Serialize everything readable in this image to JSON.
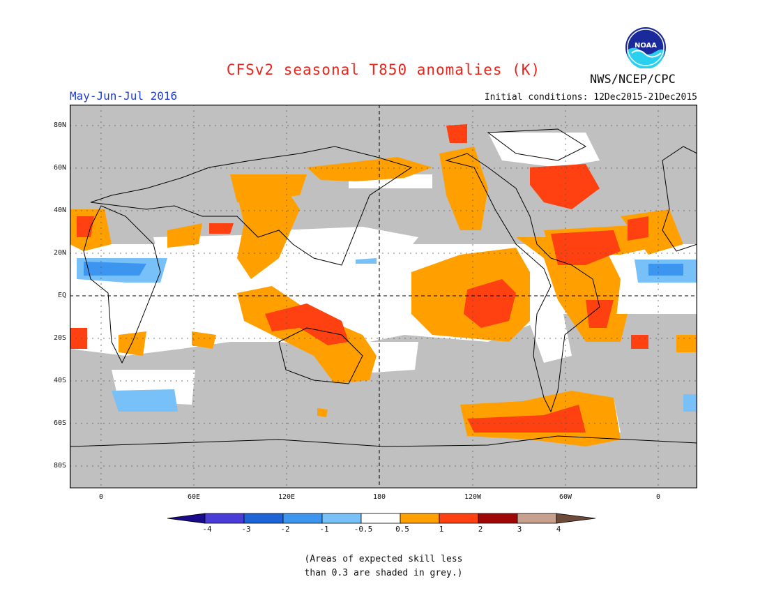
{
  "header": {
    "title": "CFSv2 seasonal T850 anomalies (K)",
    "season": "May-Jun-Jul 2016",
    "initial_conditions": "Initial conditions: 12Dec2015-21Dec2015",
    "agency": "NWS/NCEP/CPC",
    "logo_text": "NOAA",
    "logo_icon": "noaa-logo"
  },
  "axes": {
    "lat_labels": [
      "80N",
      "60N",
      "40N",
      "20N",
      "EQ",
      "20S",
      "40S",
      "60S",
      "80S"
    ],
    "lon_labels": [
      "0",
      "60E",
      "120E",
      "180",
      "120W",
      "60W",
      "0"
    ]
  },
  "colorbar": {
    "labels": [
      "-4",
      "-3",
      "-2",
      "-1",
      "-0.5",
      "0.5",
      "1",
      "2",
      "3",
      "4"
    ],
    "colors": [
      "#1a0a8c",
      "#4a3cd6",
      "#1e64d6",
      "#3c96f0",
      "#78c0f8",
      "#ffffff",
      "#ffa000",
      "#ff4010",
      "#a00808",
      "#c8a090",
      "#6e4a3a"
    ]
  },
  "map_colors": {
    "skill_grey": "#c0c0c0",
    "neutral": "#ffffff",
    "warm1": "#ffa000",
    "warm2": "#ff4010",
    "cool1": "#78c0f8",
    "cool2": "#3c96f0"
  },
  "footnote": {
    "line1": "(Areas of expected skill less",
    "line2": "than 0.3 are shaded in grey.)"
  }
}
